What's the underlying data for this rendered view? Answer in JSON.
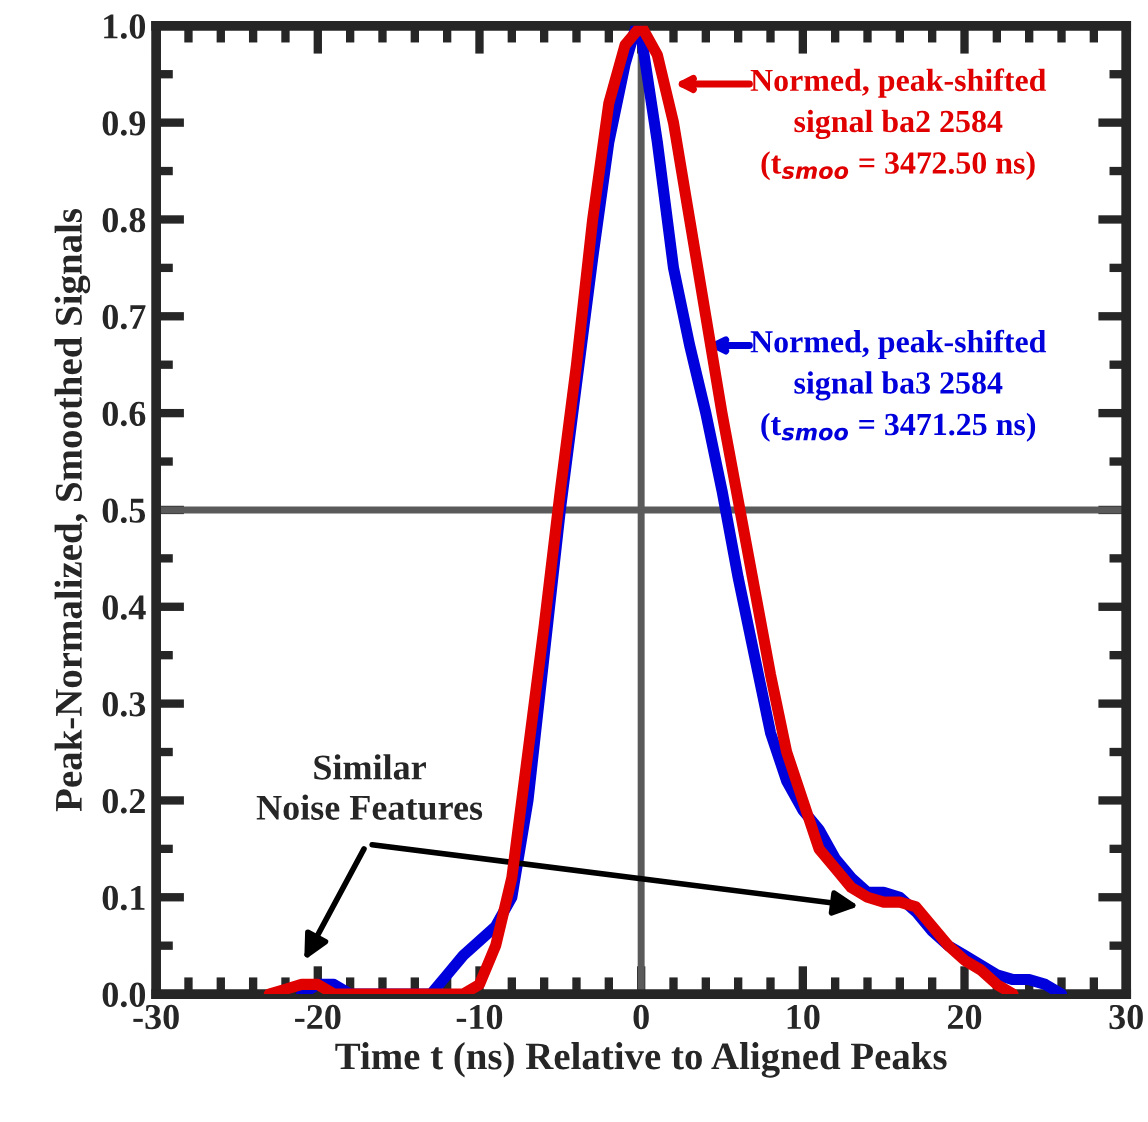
{
  "chart_data": {
    "type": "line",
    "xlabel": "Time t (ns) Relative to Aligned Peaks",
    "ylabel": "Peak-Normalized, Smoothed Signals",
    "xlim": [
      -30,
      30
    ],
    "ylim": [
      0,
      1
    ],
    "xticks": [
      -30,
      -20,
      -10,
      0,
      10,
      20,
      30
    ],
    "yticks": [
      {
        "value": 0,
        "label": "0.0"
      },
      {
        "value": 0.1,
        "label": "0.1"
      },
      {
        "value": 0.2,
        "label": "0.2"
      },
      {
        "value": 0.3,
        "label": "0.3"
      },
      {
        "value": 0.4,
        "label": "0.4"
      },
      {
        "value": 0.5,
        "label": "0.5"
      },
      {
        "value": 0.6,
        "label": "0.6"
      },
      {
        "value": 0.7,
        "label": "0.7"
      },
      {
        "value": 0.8,
        "label": "0.8"
      },
      {
        "value": 0.9,
        "label": "0.9"
      },
      {
        "value": 1.0,
        "label": "1.0"
      }
    ],
    "grid": false,
    "legend": "top right",
    "marker": "none",
    "line_style": "solid",
    "ref_lines": [
      {
        "axis": "x",
        "value": 0,
        "color": "#5a5a5a"
      },
      {
        "axis": "y",
        "value": 0.5,
        "color": "#5a5a5a"
      }
    ],
    "annotations": [
      "Similar\nNoise Features"
    ],
    "series": [
      {
        "name": "Normed, peak-shifted\nsignal ba3 2584\n(t$_{smoo}$ = 3471.25 ns)",
        "color": "#0000dd",
        "x": [
          -21,
          -20,
          -19,
          -18,
          -13,
          -12,
          -11,
          -10,
          -9,
          -8,
          -7,
          -6,
          -5,
          -4,
          -3,
          -2,
          -1,
          -0.3,
          0,
          1,
          2,
          3,
          4,
          5,
          6,
          7,
          8,
          9,
          10,
          11,
          12,
          13,
          14,
          15,
          16,
          17,
          18,
          19,
          20,
          21,
          22,
          23,
          24,
          25,
          26
        ],
        "values": [
          0,
          0.01,
          0.01,
          0,
          0,
          0.02,
          0.04,
          0.055,
          0.07,
          0.1,
          0.2,
          0.35,
          0.5,
          0.63,
          0.76,
          0.88,
          0.96,
          1.0,
          0.99,
          0.88,
          0.75,
          0.67,
          0.6,
          0.52,
          0.43,
          0.35,
          0.27,
          0.22,
          0.19,
          0.17,
          0.14,
          0.12,
          0.105,
          0.105,
          0.1,
          0.085,
          0.065,
          0.05,
          0.04,
          0.03,
          0.02,
          0.015,
          0.015,
          0.01,
          0
        ]
      },
      {
        "name": "Normed, peak-shifted\nsignal ba2 2584\n(t$_{smoo}$ = 3472.50 ns)",
        "color": "#e00000",
        "x": [
          -23,
          -22,
          -21,
          -20,
          -19,
          -11,
          -10,
          -9,
          -8,
          -7,
          -6,
          -5,
          -4,
          -3,
          -2,
          -1,
          0,
          1,
          2,
          3,
          4,
          5,
          6,
          7,
          8,
          9,
          10,
          11,
          12,
          13,
          14,
          15,
          16,
          17,
          18,
          19,
          20,
          21,
          22,
          23
        ],
        "values": [
          0,
          0.005,
          0.01,
          0.01,
          0,
          0,
          0.01,
          0.05,
          0.12,
          0.25,
          0.38,
          0.52,
          0.65,
          0.8,
          0.92,
          0.98,
          1.0,
          0.97,
          0.9,
          0.8,
          0.7,
          0.6,
          0.51,
          0.42,
          0.33,
          0.25,
          0.2,
          0.15,
          0.13,
          0.11,
          0.1,
          0.095,
          0.095,
          0.09,
          0.07,
          0.05,
          0.035,
          0.025,
          0.01,
          0
        ]
      }
    ]
  }
}
